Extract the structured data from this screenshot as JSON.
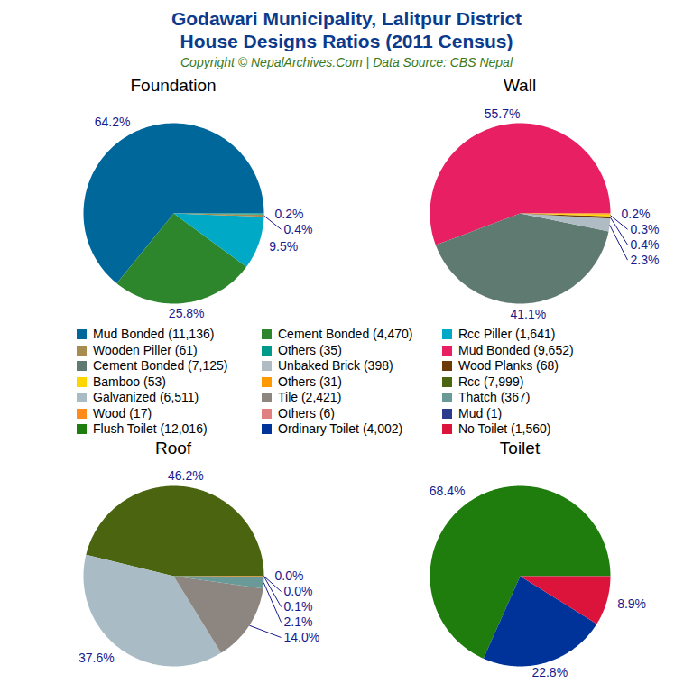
{
  "title": "Godawari Municipality, Lalitpur District\nHouse Designs Ratios (2011 Census)",
  "subtitle": "Copyright © NepalArchives.Com | Data Source: CBS Nepal",
  "chart_data": [
    {
      "type": "pie",
      "title": "Foundation",
      "categories": [
        "Mud Bonded (11,136)",
        "Cement Bonded (4,470)",
        "Rcc Piller (1,641)",
        "Wooden Piller (61)",
        "Others (35)"
      ],
      "values": [
        64.2,
        25.8,
        9.5,
        0.4,
        0.2
      ],
      "value_labels": [
        "64.2%",
        "25.8%",
        "9.5%",
        "0.4%",
        "0.2%"
      ],
      "colors": [
        "#00679a",
        "#2e862c",
        "#00aac6",
        "#a88b4e",
        "#009a8a"
      ],
      "data_labels": true
    },
    {
      "type": "pie",
      "title": "Wall",
      "categories": [
        "Mud Bonded (9,652)",
        "Cement Bonded (7,125)",
        "Unbaked Brick (398)",
        "Wood Planks (68)",
        "Bamboo (53)",
        "Others (31)"
      ],
      "values": [
        55.7,
        41.1,
        2.3,
        0.4,
        0.3,
        0.2
      ],
      "value_labels": [
        "55.7%",
        "41.1%",
        "2.3%",
        "0.4%",
        "0.3%",
        "0.2%"
      ],
      "colors": [
        "#e81f62",
        "#5f7a70",
        "#b0bcc4",
        "#6b3a07",
        "#ffd700",
        "#ff9900"
      ],
      "data_labels": true
    },
    {
      "type": "pie",
      "title": "Roof",
      "categories": [
        "Rcc (7,999)",
        "Galvanized (6,511)",
        "Tile (2,421)",
        "Thatch (367)",
        "Wood (17)",
        "Others (6)",
        "Mud (1)"
      ],
      "values": [
        46.2,
        37.6,
        14.0,
        2.1,
        0.1,
        0.0,
        0.0
      ],
      "value_labels": [
        "46.2%",
        "37.6%",
        "14.0%",
        "2.1%",
        "0.1%",
        "0.0%",
        "0.0%"
      ],
      "colors": [
        "#4a6410",
        "#a9bbc5",
        "#8c8580",
        "#6a9a98",
        "#ff8c1a",
        "#e08080",
        "#2a3a8c"
      ],
      "data_labels": true
    },
    {
      "type": "pie",
      "title": "Toilet",
      "categories": [
        "Flush Toilet (12,016)",
        "Ordinary Toilet (4,002)",
        "No Toilet (1,560)"
      ],
      "values": [
        68.4,
        22.8,
        8.9
      ],
      "value_labels": [
        "68.4%",
        "22.8%",
        "8.9%"
      ],
      "colors": [
        "#1f7d0e",
        "#003399",
        "#dc143c"
      ],
      "data_labels": true
    }
  ]
}
